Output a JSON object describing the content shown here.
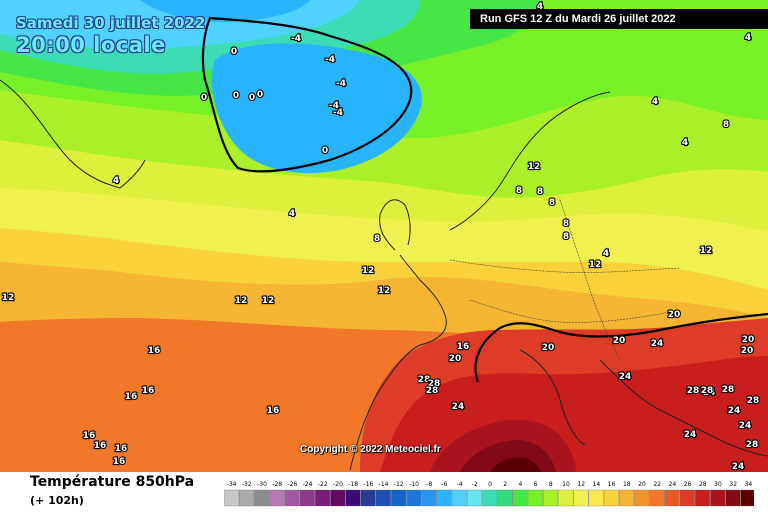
{
  "header": {
    "date": "Samedi 30 juillet 2022",
    "time": "20:00 locale",
    "run": "Run GFS 12 Z du Mardi 26 juillet 2022"
  },
  "copyright": "Copyright © 2022 Meteociel.fr",
  "footer": {
    "title": "Température 850hPa",
    "subtitle": "(+ 102h)"
  },
  "scale": {
    "values": [
      -34,
      -32,
      -30,
      -28,
      -26,
      -24,
      -22,
      -20,
      -18,
      -16,
      -14,
      -12,
      -10,
      -8,
      -6,
      -4,
      -2,
      0,
      2,
      4,
      6,
      8,
      10,
      12,
      14,
      16,
      18,
      20,
      22,
      24,
      26,
      28,
      30,
      32,
      34
    ],
    "colors": [
      "#c8c8c8",
      "#aaaaaa",
      "#8c8c8c",
      "#b478b4",
      "#a05aa0",
      "#8c3c8c",
      "#781e78",
      "#640a64",
      "#3c0a78",
      "#283c96",
      "#1e50b4",
      "#1464c8",
      "#1e78dc",
      "#2896f0",
      "#28b4ff",
      "#50d2ff",
      "#64e6f0",
      "#3cdcb4",
      "#32dc78",
      "#46e646",
      "#78f028",
      "#aaf028",
      "#dcf03c",
      "#f0f050",
      "#fae650",
      "#fad23c",
      "#f5b432",
      "#f09628",
      "#f07828",
      "#e65a28",
      "#dc3c28",
      "#c81e1e",
      "#aa141e",
      "#820a14",
      "#5a0000"
    ]
  },
  "contour_labels": [
    {
      "text": "-4"
    },
    {
      "text": "-4"
    },
    {
      "text": "-4"
    },
    {
      "text": "-4"
    },
    {
      "text": "-4"
    },
    {
      "text": "0"
    },
    {
      "text": "0"
    },
    {
      "text": "0"
    },
    {
      "text": "0"
    },
    {
      "text": "0"
    },
    {
      "text": "0"
    },
    {
      "text": "4"
    },
    {
      "text": "4"
    },
    {
      "text": "4"
    },
    {
      "text": "4"
    },
    {
      "text": "4"
    },
    {
      "text": "4"
    },
    {
      "text": "4"
    },
    {
      "text": "8"
    },
    {
      "text": "8"
    },
    {
      "text": "8"
    },
    {
      "text": "8"
    },
    {
      "text": "8"
    },
    {
      "text": "8"
    },
    {
      "text": "8"
    },
    {
      "text": "12"
    },
    {
      "text": "12"
    },
    {
      "text": "12"
    },
    {
      "text": "12"
    },
    {
      "text": "12"
    },
    {
      "text": "12"
    },
    {
      "text": "12"
    },
    {
      "text": "12"
    },
    {
      "text": "16"
    },
    {
      "text": "16"
    },
    {
      "text": "16"
    },
    {
      "text": "16"
    },
    {
      "text": "16"
    },
    {
      "text": "16"
    },
    {
      "text": "16"
    },
    {
      "text": "16"
    },
    {
      "text": "16"
    },
    {
      "text": "20"
    },
    {
      "text": "20"
    },
    {
      "text": "20"
    },
    {
      "text": "20"
    },
    {
      "text": "20"
    },
    {
      "text": "20"
    },
    {
      "text": "24"
    },
    {
      "text": "24"
    },
    {
      "text": "24"
    },
    {
      "text": "24"
    },
    {
      "text": "24"
    },
    {
      "text": "24"
    },
    {
      "text": "24"
    },
    {
      "text": "24"
    },
    {
      "text": "28"
    },
    {
      "text": "28"
    },
    {
      "text": "28"
    },
    {
      "text": "28"
    },
    {
      "text": "28"
    },
    {
      "text": "28"
    },
    {
      "text": "28"
    },
    {
      "text": "28"
    }
  ]
}
